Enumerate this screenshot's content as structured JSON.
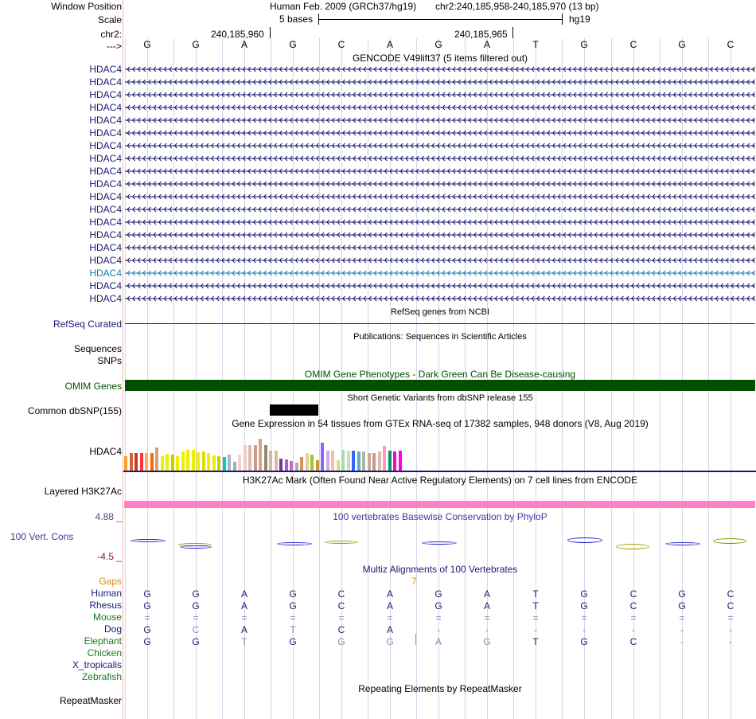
{
  "header": {
    "window_position_label": "Window Position",
    "assembly": "Human Feb. 2009 (GRCh37/hg19)",
    "position": "chr2:240,185,958-240,185,970 (13 bp)",
    "scale_label": "Scale",
    "scale_text": "5 bases",
    "db": "hg19",
    "chrom_label": "chr2:",
    "coord1": "240,185,960",
    "coord2": "240,185,965",
    "strand_label": "--->"
  },
  "sequence": [
    "G",
    "G",
    "A",
    "G",
    "C",
    "A",
    "G",
    "A",
    "T",
    "G",
    "C",
    "G",
    "C"
  ],
  "gencode": {
    "title": "GENCODE V49lift37 (5 items filtered out)",
    "genes": [
      "HDAC4",
      "HDAC4",
      "HDAC4",
      "HDAC4",
      "HDAC4",
      "HDAC4",
      "HDAC4",
      "HDAC4",
      "HDAC4",
      "HDAC4",
      "HDAC4",
      "HDAC4",
      "HDAC4",
      "HDAC4",
      "HDAC4",
      "HDAC4",
      "HDAC4",
      "HDAC4",
      "HDAC4"
    ],
    "colors": [
      "#1a1a72",
      "#1a1a72",
      "#1a1a72",
      "#1a1a72",
      "#1a1a72",
      "#1a1a72",
      "#1a1a72",
      "#1a1a72",
      "#1a1a72",
      "#1a1a72",
      "#1a1a72",
      "#1a1a72",
      "#1a1a72",
      "#1a1a72",
      "#1a1a72",
      "#1a1a72",
      "#1a7ab0",
      "#1a1a72",
      "#1a1a72"
    ]
  },
  "refseq": {
    "title": "RefSeq genes from NCBI",
    "label": "RefSeq Curated"
  },
  "publications": {
    "title": "Publications: Sequences in Scientific Articles",
    "label1": "Sequences",
    "label2": "SNPs"
  },
  "omim": {
    "title": "OMIM Gene Phenotypes - Dark Green Can Be Disease-causing",
    "label": "OMIM Genes",
    "color": "#005000"
  },
  "dbsnp": {
    "title": "Short Genetic Variants from dbSNP release 155",
    "label": "Common dbSNP(155)"
  },
  "gtex": {
    "title": "Gene Expression in 54 tissues from GTEx RNA-seq of 17382 samples, 948 donors (V8, Aug 2019)",
    "label": "HDAC4",
    "values": [
      0.45,
      0.55,
      0.55,
      0.55,
      0.55,
      0.55,
      0.72,
      0.45,
      0.52,
      0.5,
      0.45,
      0.6,
      0.65,
      0.65,
      0.58,
      0.6,
      0.55,
      0.48,
      0.45,
      0.42,
      0.5,
      0.28,
      0.5,
      0.8,
      0.8,
      0.8,
      1.0,
      0.8,
      0.62,
      0.62,
      0.38,
      0.35,
      0.3,
      0.25,
      0.42,
      0.55,
      0.5,
      0.32,
      0.88,
      0.62,
      0.62,
      0.32,
      0.65,
      0.62,
      0.62,
      0.6,
      0.6,
      0.55,
      0.55,
      0.6,
      0.78,
      0.62,
      0.6,
      0.62
    ],
    "colors": [
      "#ff9933",
      "#cc6633",
      "#cc3333",
      "#ff3333",
      "#ffaa66",
      "#ff6600",
      "#cfa07a",
      "#eeee00",
      "#eeee00",
      "#cccc00",
      "#eeee00",
      "#eeee00",
      "#eeee00",
      "#eeee00",
      "#eeee00",
      "#dddd00",
      "#eeee00",
      "#eeee00",
      "#cccc00",
      "#00cccc",
      "#99bbcc",
      "#aaaaaa",
      "#eed5cc",
      "#eecccc",
      "#ddbbaa",
      "#cc9988",
      "#ccaa88",
      "#998866",
      "#ccbbaa",
      "#ddbb99",
      "#7733aa",
      "#9966cc",
      "#cc66cc",
      "#bbaa99",
      "#cc9966",
      "#eecc99",
      "#99cc33",
      "#cc9933",
      "#8866ff",
      "#ccaaee",
      "#ffbbaa",
      "#dddd77",
      "#aaddaa",
      "#ccddbb",
      "#3366ff",
      "#66aacc",
      "#aabb99",
      "#ccaa99",
      "#cc9988",
      "#ddbbaa",
      "#ff99cc",
      "#009966",
      "#ff00cc",
      "#ff00ee"
    ]
  },
  "h3k27ac": {
    "title": "H3K27Ac Mark (Often Found Near Active Regulatory Elements) on 7 cell lines from ENCODE",
    "label": "Layered H3K27Ac",
    "color": "#ff80c8"
  },
  "phylop": {
    "title": "100 vertebrates Basewise Conservation by PhyloP",
    "label": "100 Vert. Cons",
    "max": "4.88 _",
    "min": "-4.5 _"
  },
  "multiz": {
    "title": "Multiz Alignments of 100 Vertebrates",
    "gaps_label": "Gaps",
    "gap_number": "7",
    "species": [
      {
        "name": "Human",
        "color": "#1a1a72",
        "seq": [
          "G",
          "G",
          "A",
          "G",
          "C",
          "A",
          "G",
          "A",
          "T",
          "G",
          "C",
          "G",
          "C"
        ]
      },
      {
        "name": "Rhesus",
        "color": "#1a1a72",
        "seq": [
          "G",
          "G",
          "A",
          "G",
          "C",
          "A",
          "G",
          "A",
          "T",
          "G",
          "C",
          "G",
          "C"
        ]
      },
      {
        "name": "Mouse",
        "color": "#1a7a1a",
        "seq": [
          "=",
          "=",
          "=",
          "=",
          "=",
          "=",
          "=",
          "=",
          "=",
          "=",
          "=",
          "=",
          "="
        ]
      },
      {
        "name": "Dog",
        "color": "#1a1a72",
        "seq": [
          "G",
          "C",
          "A",
          "T",
          "C",
          "A",
          "-",
          "-",
          "-",
          "-",
          "-",
          "-",
          "-"
        ]
      },
      {
        "name": "Elephant",
        "color": "#1a7a1a",
        "seq": [
          "G",
          "G",
          "T",
          "G",
          "G",
          "G",
          "A",
          "G",
          "T",
          "G",
          "C",
          "-",
          "-"
        ]
      },
      {
        "name": "Chicken",
        "color": "#1a7a1a",
        "seq": []
      },
      {
        "name": "X_tropicalis",
        "color": "#1a1a72",
        "seq": []
      },
      {
        "name": "Zebrafish",
        "color": "#1a7a1a",
        "seq": []
      }
    ]
  },
  "repeatmasker": {
    "title": "Repeating Elements by RepeatMasker",
    "label": "RepeatMasker"
  }
}
